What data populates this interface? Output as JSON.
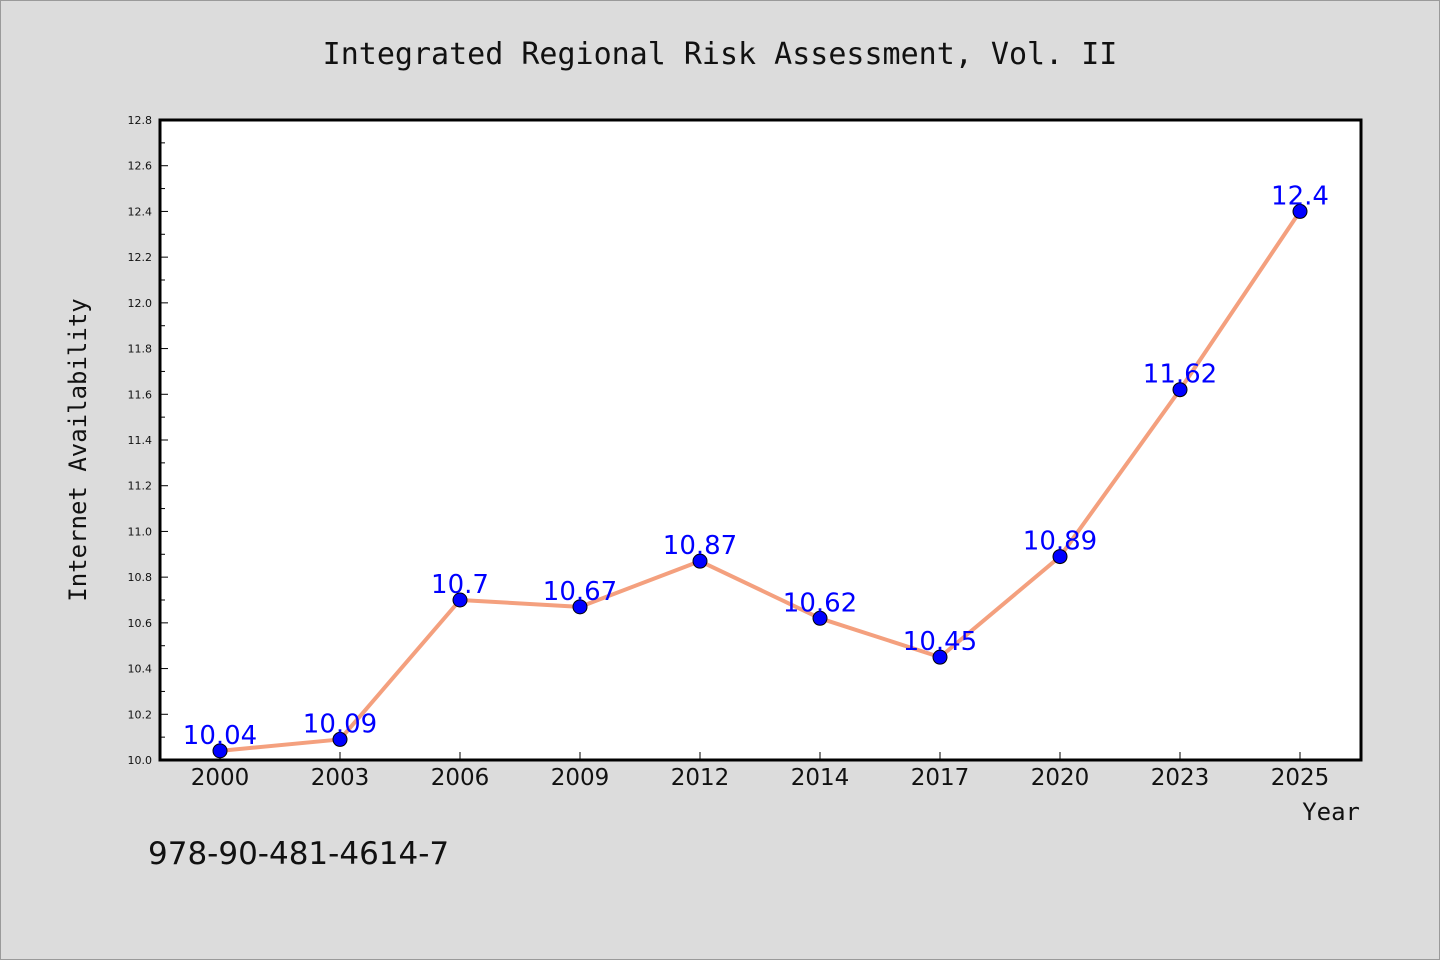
{
  "chart_data": {
    "type": "line",
    "title": "Integrated Regional Risk Assessment, Vol. II",
    "xlabel": "Year",
    "ylabel": "Internet Availability",
    "categories": [
      "2000",
      "2003",
      "2006",
      "2009",
      "2012",
      "2014",
      "2017",
      "2020",
      "2023",
      "2025"
    ],
    "values": [
      10.04,
      10.09,
      10.7,
      10.67,
      10.87,
      10.62,
      10.45,
      10.89,
      11.62,
      12.4
    ],
    "data_labels": [
      "10.04",
      "10.09",
      "10.7",
      "10.67",
      "10.87",
      "10.62",
      "10.45",
      "10.89",
      "11.62",
      "12.4"
    ],
    "yticks": [
      "10.0",
      "10.2",
      "10.4",
      "10.6",
      "10.8",
      "11.0",
      "11.2",
      "11.4",
      "11.6",
      "11.8",
      "12.0",
      "12.2",
      "12.4",
      "12.6",
      "12.8"
    ],
    "ylim": [
      10.0,
      12.8
    ],
    "grid": false,
    "line_color": "#f4a07e",
    "marker_color": "#0000ff",
    "label_color": "#0000ff",
    "background": "#dcdcdc",
    "plot_background": "#ffffff"
  },
  "footer": {
    "isbn": "978-90-481-4614-7"
  }
}
